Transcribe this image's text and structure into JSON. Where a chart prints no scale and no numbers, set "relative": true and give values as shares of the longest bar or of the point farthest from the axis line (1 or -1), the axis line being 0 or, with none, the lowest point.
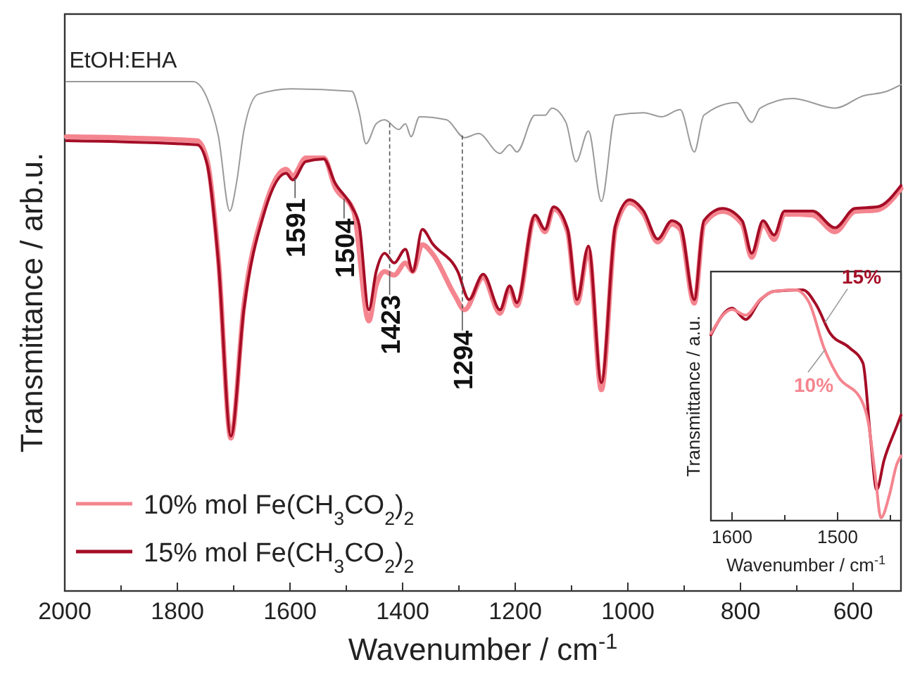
{
  "chart_data": [
    {
      "type": "line",
      "relative": true,
      "xlabel": "Wavenumber / cm$^{-1}$",
      "ylabel": "Transmittance / arb.u.",
      "xlim": [
        2000,
        515
      ],
      "xticks": [
        2000,
        {
          "value": 1900,
          "label": null
        },
        1800,
        {
          "value": 1700,
          "label": null
        },
        1600,
        {
          "value": 1500,
          "label": null
        },
        1400,
        {
          "value": 1300,
          "label": null
        },
        1200,
        {
          "value": 1100,
          "label": null
        },
        1000,
        {
          "value": 900,
          "label": null
        },
        800,
        {
          "value": 700,
          "label": null
        },
        600
      ],
      "tick_labels": "x",
      "legend": "bottom left",
      "grid": false,
      "annotations": [
        {
          "text": "1591",
          "x": 1591,
          "y": 0.81
        },
        {
          "text": "1504",
          "x": 1504,
          "y": 0.77
        },
        {
          "text": "1423",
          "x": 1423,
          "y": 0.62
        },
        {
          "text": "1294",
          "x": 1294,
          "y": 0.55
        }
      ],
      "series": [
        {
          "name": "EtOH:EHA",
          "color": "#9a9a9a",
          "x": [
            1997,
            1772,
            1747,
            1727,
            1707,
            1695,
            1682,
            1657,
            1597,
            1490,
            1477,
            1465,
            1447,
            1432,
            1407,
            1395,
            1385,
            1370,
            1322,
            1290,
            1265,
            1227,
            1210,
            1197,
            1165,
            1147,
            1135,
            1110,
            1092,
            1070,
            1047,
            1022,
            972,
            940,
            907,
            882,
            865,
            807,
            780,
            765,
            707,
            632,
            582,
            540,
            515
          ],
          "values": [
            1.0,
            1.0,
            0.967,
            0.892,
            0.746,
            0.801,
            0.903,
            0.975,
            0.986,
            0.981,
            0.939,
            0.878,
            0.917,
            0.925,
            0.906,
            0.917,
            0.892,
            0.931,
            0.925,
            0.89,
            0.898,
            0.859,
            0.876,
            0.862,
            0.934,
            0.934,
            0.948,
            0.92,
            0.843,
            0.903,
            0.765,
            0.934,
            0.939,
            0.931,
            0.945,
            0.862,
            0.934,
            0.959,
            0.92,
            0.948,
            0.967,
            0.948,
            0.972,
            0.981,
            0.994
          ]
        },
        {
          "name": "10% mol Fe(CH$_{3}$CO$_{2}$)$_{2}$",
          "color": "#f4858f",
          "x": [
            1997,
            1765,
            1747,
            1727,
            1705,
            1682,
            1647,
            1607,
            1595,
            1572,
            1540,
            1520,
            1487,
            1460,
            1447,
            1432,
            1415,
            1395,
            1382,
            1365,
            1347,
            1307,
            1290,
            1257,
            1227,
            1210,
            1197,
            1165,
            1147,
            1132,
            1107,
            1090,
            1070,
            1047,
            1022,
            997,
            972,
            947,
            922,
            907,
            882,
            865,
            832,
            797,
            780,
            760,
            740,
            722,
            672,
            632,
            597,
            557,
            515
          ],
          "values": [
            0.892,
            0.884,
            0.845,
            0.65,
            0.3,
            0.56,
            0.745,
            0.828,
            0.815,
            0.85,
            0.85,
            0.793,
            0.746,
            0.53,
            0.6,
            0.627,
            0.62,
            0.644,
            0.627,
            0.68,
            0.662,
            0.58,
            0.552,
            0.615,
            0.545,
            0.595,
            0.56,
            0.735,
            0.705,
            0.75,
            0.705,
            0.565,
            0.67,
            0.395,
            0.712,
            0.762,
            0.74,
            0.685,
            0.72,
            0.71,
            0.565,
            0.72,
            0.745,
            0.72,
            0.655,
            0.72,
            0.69,
            0.74,
            0.738,
            0.705,
            0.745,
            0.748,
            0.79
          ]
        },
        {
          "name": "15% mol Fe(CH$_{3}$CO$_{2}$)$_{2}$",
          "color": "#a50d26",
          "x": [
            1997,
            1765,
            1747,
            1727,
            1705,
            1682,
            1647,
            1607,
            1595,
            1572,
            1540,
            1520,
            1490,
            1477,
            1460,
            1447,
            1432,
            1415,
            1395,
            1382,
            1365,
            1347,
            1302,
            1282,
            1257,
            1227,
            1210,
            1197,
            1165,
            1147,
            1132,
            1107,
            1090,
            1070,
            1047,
            1022,
            997,
            972,
            947,
            922,
            907,
            882,
            865,
            832,
            797,
            780,
            760,
            740,
            722,
            672,
            632,
            597,
            557,
            515
          ],
          "values": [
            0.884,
            0.876,
            0.837,
            0.644,
            0.304,
            0.552,
            0.738,
            0.82,
            0.807,
            0.843,
            0.848,
            0.801,
            0.754,
            0.718,
            0.552,
            0.627,
            0.663,
            0.644,
            0.671,
            0.627,
            0.71,
            0.682,
            0.627,
            0.572,
            0.622,
            0.552,
            0.599,
            0.566,
            0.738,
            0.71,
            0.754,
            0.71,
            0.572,
            0.677,
            0.409,
            0.718,
            0.768,
            0.746,
            0.691,
            0.727,
            0.718,
            0.572,
            0.727,
            0.751,
            0.727,
            0.663,
            0.727,
            0.699,
            0.746,
            0.746,
            0.713,
            0.751,
            0.754,
            0.796
          ]
        }
      ]
    },
    {
      "type": "line",
      "relative": true,
      "xlabel": "Wavenumber / cm$^{-1}$",
      "ylabel": "Transmittance / a.u.",
      "xlim": [
        1620,
        1440
      ],
      "xticks": [
        1600,
        {
          "value": 1550,
          "label": null
        },
        1500,
        {
          "value": 1450,
          "label": null
        }
      ],
      "tick_labels": "x",
      "legend": false,
      "series": [
        {
          "name": "15%",
          "color": "#a50d26",
          "x": [
            1620,
            1600,
            1587,
            1573,
            1560,
            1533,
            1520,
            1507,
            1489,
            1476,
            1469,
            1463,
            1456,
            1444,
            1440
          ],
          "values": [
            0.805,
            0.921,
            0.872,
            0.957,
            0.994,
            1.0,
            0.933,
            0.811,
            0.75,
            0.683,
            0.366,
            0.134,
            0.262,
            0.409,
            0.457
          ]
        },
        {
          "name": "10%",
          "color": "#f4858f",
          "x": [
            1620,
            1600,
            1587,
            1573,
            1560,
            1540,
            1527,
            1513,
            1500,
            1477,
            1471,
            1464,
            1459,
            1451,
            1444,
            1440
          ],
          "values": [
            0.811,
            0.915,
            0.89,
            0.96,
            0.994,
            1.0,
            0.945,
            0.75,
            0.628,
            0.518,
            0.427,
            0.183,
            0.012,
            0.11,
            0.244,
            0.28
          ]
        }
      ]
    }
  ]
}
